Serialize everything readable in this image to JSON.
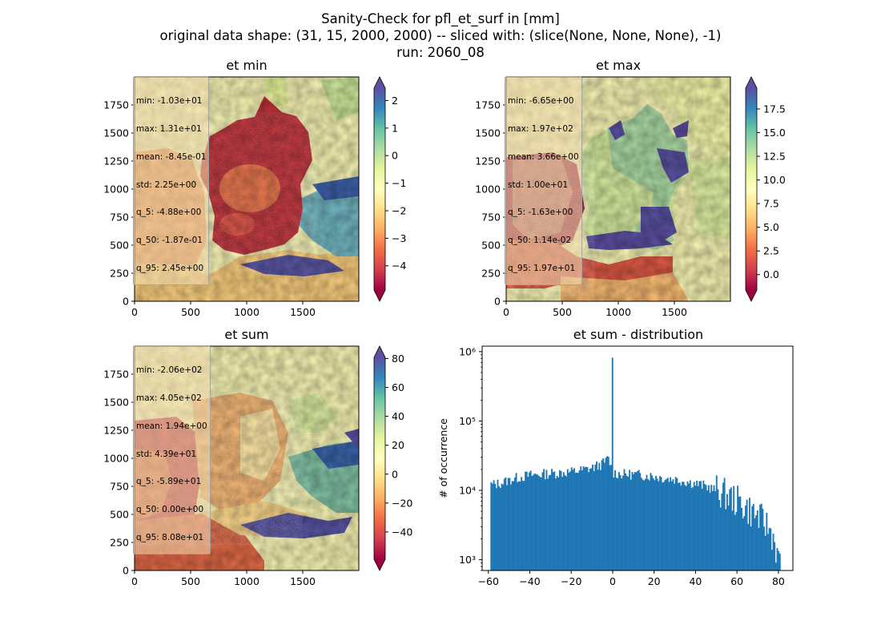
{
  "figure": {
    "title_line1": "Sanity-Check for pfl_et_surf in [mm]",
    "title_line2": "original data shape: (31, 15, 2000, 2000) -- sliced with: (slice(None, None, None), -1)",
    "title_line3": "run: 2060_08"
  },
  "colormap": "Spectral",
  "panels": [
    {
      "title": "et min",
      "stats": [
        "min: -1.03e+01",
        "max: 1.31e+01",
        "mean: -8.45e-01",
        "std: 2.25e+00",
        "q_5: -4.88e+00",
        "q_50: -1.87e-01",
        "q_95: 2.45e+00"
      ],
      "x_ticks": [
        "0",
        "500",
        "1000",
        "1500"
      ],
      "y_ticks": [
        "0",
        "250",
        "500",
        "750",
        "1000",
        "1250",
        "1500",
        "1750"
      ],
      "colorbar_ticks": [
        "2",
        "1",
        "0",
        "−1",
        "−2",
        "−3",
        "−4"
      ],
      "colorbar_range": [
        -4.88,
        2.45
      ]
    },
    {
      "title": "et max",
      "stats": [
        "min: -6.65e+00",
        "max: 1.97e+02",
        "mean: 3.66e+00",
        "std: 1.00e+01",
        "q_5: -1.63e+00",
        "q_50: 1.14e-02",
        "q_95: 1.97e+01"
      ],
      "x_ticks": [
        "0",
        "500",
        "1000",
        "1500"
      ],
      "y_ticks": [
        "0",
        "250",
        "500",
        "750",
        "1000",
        "1250",
        "1500",
        "1750"
      ],
      "colorbar_ticks": [
        "17.5",
        "15.0",
        "12.5",
        "10.0",
        "7.5",
        "5.0",
        "2.5",
        "0.0"
      ],
      "colorbar_range": [
        -1.63,
        19.7
      ]
    },
    {
      "title": "et sum",
      "stats": [
        "min: -2.06e+02",
        "max: 4.05e+02",
        "mean: 1.94e+00",
        "std: 4.39e+01",
        "q_5: -5.89e+01",
        "q_50: 0.00e+00",
        "q_95: 8.08e+01"
      ],
      "x_ticks": [
        "0",
        "500",
        "1000",
        "1500"
      ],
      "y_ticks": [
        "0",
        "250",
        "500",
        "750",
        "1000",
        "1250",
        "1500",
        "1750"
      ],
      "colorbar_ticks": [
        "80",
        "60",
        "40",
        "20",
        "0",
        "−20",
        "−40"
      ],
      "colorbar_range": [
        -58.9,
        80.8
      ]
    }
  ],
  "chart_data": {
    "type": "bar",
    "title": "et sum - distribution",
    "xlabel": "",
    "ylabel": "# of occurrence",
    "yscale": "log",
    "xlim": [
      -63,
      87
    ],
    "ylim": [
      700,
      1200000
    ],
    "x_ticks": [
      "−60",
      "−40",
      "−20",
      "0",
      "20",
      "40",
      "60",
      "80"
    ],
    "y_ticks": [
      "10³",
      "10⁴",
      "10⁵",
      "10⁶"
    ],
    "color": "#1f77b4",
    "bins_x": [
      -59,
      -55,
      -50,
      -45,
      -40,
      -35,
      -30,
      -25,
      -20,
      -15,
      -10,
      -5,
      -2,
      -0.5,
      0,
      0.5,
      2,
      5,
      10,
      15,
      20,
      25,
      30,
      35,
      40,
      45,
      50,
      55,
      60,
      65,
      70,
      75,
      78,
      80
    ],
    "bins_y": [
      12000,
      12500,
      14000,
      15500,
      16500,
      17000,
      17500,
      18000,
      18500,
      19500,
      21000,
      24000,
      29000,
      20000,
      820000,
      18000,
      17500,
      17000,
      17000,
      16500,
      16000,
      15000,
      14500,
      13500,
      12500,
      11500,
      10000,
      8500,
      7000,
      5500,
      4200,
      3000,
      2000,
      900
    ]
  }
}
